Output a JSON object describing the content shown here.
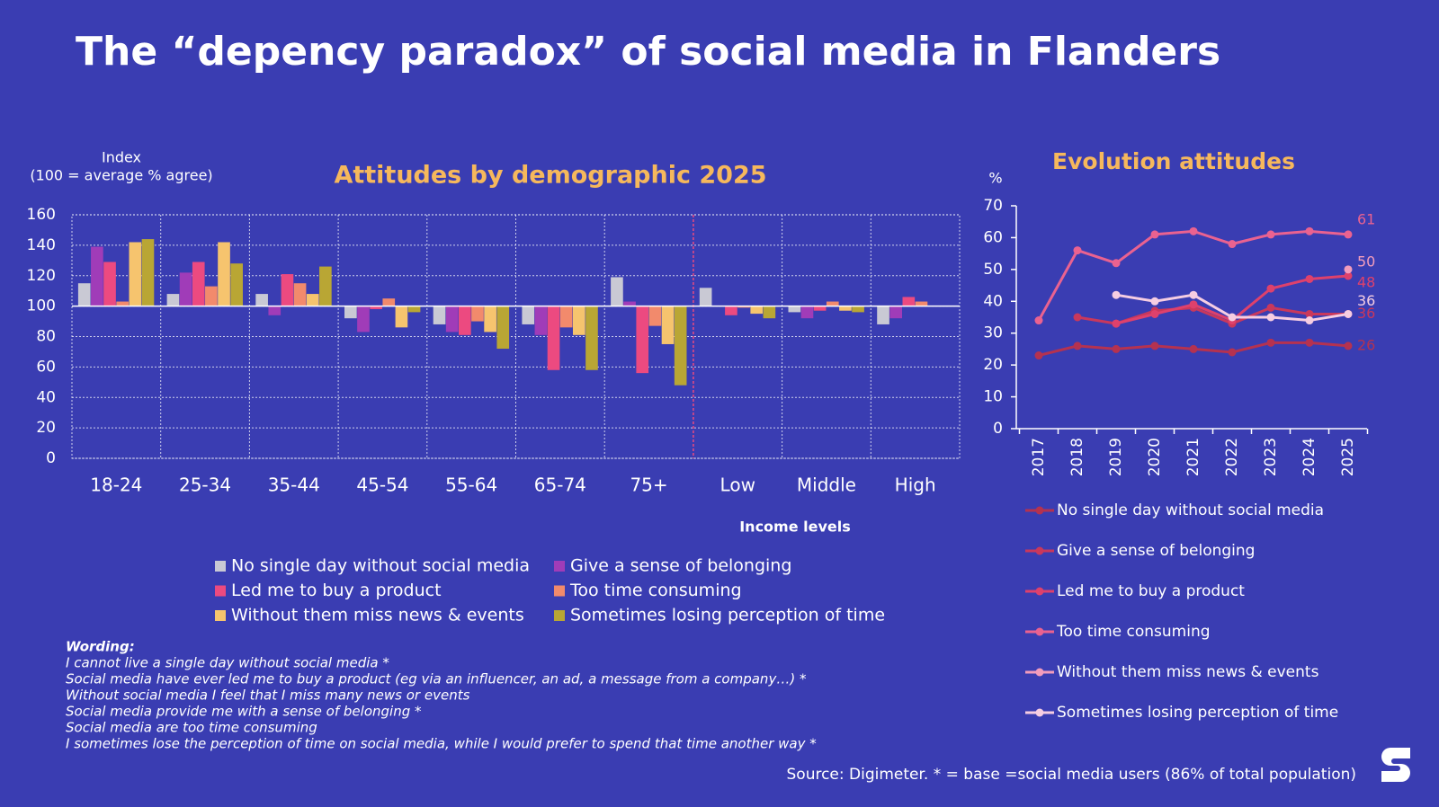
{
  "title": "The “depency paradox” of social media in Flanders",
  "chart_data": [
    {
      "type": "bar",
      "title": "Attitudes by demographic 2025",
      "y_label": "Index",
      "y_sublabel": "(100 = average % agree)",
      "annotation": "Income levels",
      "baseline": 100,
      "categories": [
        "18-24",
        "25-34",
        "35-44",
        "45-54",
        "55-64",
        "65-74",
        "75+",
        "Low",
        "Middle",
        "High"
      ],
      "series": [
        {
          "name": "No single day without social media",
          "color": "#c9c9d4",
          "values": [
            115,
            108,
            108,
            92,
            88,
            88,
            119,
            112,
            96,
            88
          ]
        },
        {
          "name": "Give a sense of belonging",
          "color": "#a03cb8",
          "values": [
            139,
            122,
            94,
            83,
            83,
            81,
            103,
            100,
            92,
            92
          ]
        },
        {
          "name": "Led me to buy a product",
          "color": "#ec4a80",
          "values": [
            129,
            129,
            121,
            98,
            81,
            58,
            56,
            94,
            97,
            106
          ]
        },
        {
          "name": "Too time consuming",
          "color": "#f28a6c",
          "values": [
            103,
            113,
            115,
            105,
            90,
            86,
            87,
            99,
            103,
            103
          ]
        },
        {
          "name": "Without them miss news & events",
          "color": "#f6c46e",
          "values": [
            142,
            142,
            108,
            86,
            83,
            81,
            75,
            95,
            97,
            100
          ]
        },
        {
          "name": "Sometimes losing perception of time",
          "color": "#b9a634",
          "values": [
            144,
            128,
            126,
            96,
            72,
            58,
            48,
            92,
            96,
            100
          ]
        }
      ],
      "ylim": [
        0,
        160
      ],
      "yticks": [
        0,
        20,
        40,
        60,
        80,
        100,
        120,
        140,
        160
      ],
      "grid": true
    },
    {
      "type": "line",
      "title": "Evolution attitudes",
      "y_label": "%",
      "categories": [
        "2017",
        "2018",
        "2019",
        "2020",
        "2021",
        "2022",
        "2023",
        "2024",
        "2025"
      ],
      "series": [
        {
          "name": "No single day without social media",
          "color": "#b53250",
          "values": [
            23,
            26,
            25,
            26,
            25,
            24,
            27,
            27,
            26
          ]
        },
        {
          "name": "Give a sense of belonging",
          "color": "#c9385c",
          "values": [
            null,
            35,
            33,
            37,
            38,
            33,
            38,
            36,
            36
          ]
        },
        {
          "name": "Led me to buy a product",
          "color": "#de416c",
          "values": [
            null,
            null,
            33,
            36,
            39,
            34,
            44,
            47,
            48
          ]
        },
        {
          "name": "Too time consuming",
          "color": "#ea6290",
          "values": [
            34,
            56,
            52,
            61,
            62,
            58,
            61,
            62,
            61
          ]
        },
        {
          "name": "Without them miss news & events",
          "color": "#f29cbc",
          "values": [
            null,
            null,
            null,
            null,
            null,
            null,
            null,
            null,
            50
          ]
        },
        {
          "name": "Sometimes losing perception of time",
          "color": "#f6cde2",
          "values": [
            null,
            null,
            42,
            40,
            42,
            35,
            35,
            34,
            36
          ]
        }
      ],
      "ylim": [
        0,
        70
      ],
      "yticks": [
        0,
        10,
        20,
        30,
        40,
        50,
        60,
        70
      ]
    }
  ],
  "wording": {
    "heading": "Wording:",
    "lines": [
      "I cannot live a single day without social media *",
      "Social media have ever led me to buy a product (eg via an influencer, an ad, a message from a company…) *",
      "Without social media I feel that I miss many news or events",
      "Social media provide me with a sense of belonging *",
      "Social media are too time consuming",
      "I sometimes lose the perception of time on social media, while I would prefer to spend that time another way *"
    ]
  },
  "source": "Source: Digimeter. * = base =social media users (86% of total population)"
}
